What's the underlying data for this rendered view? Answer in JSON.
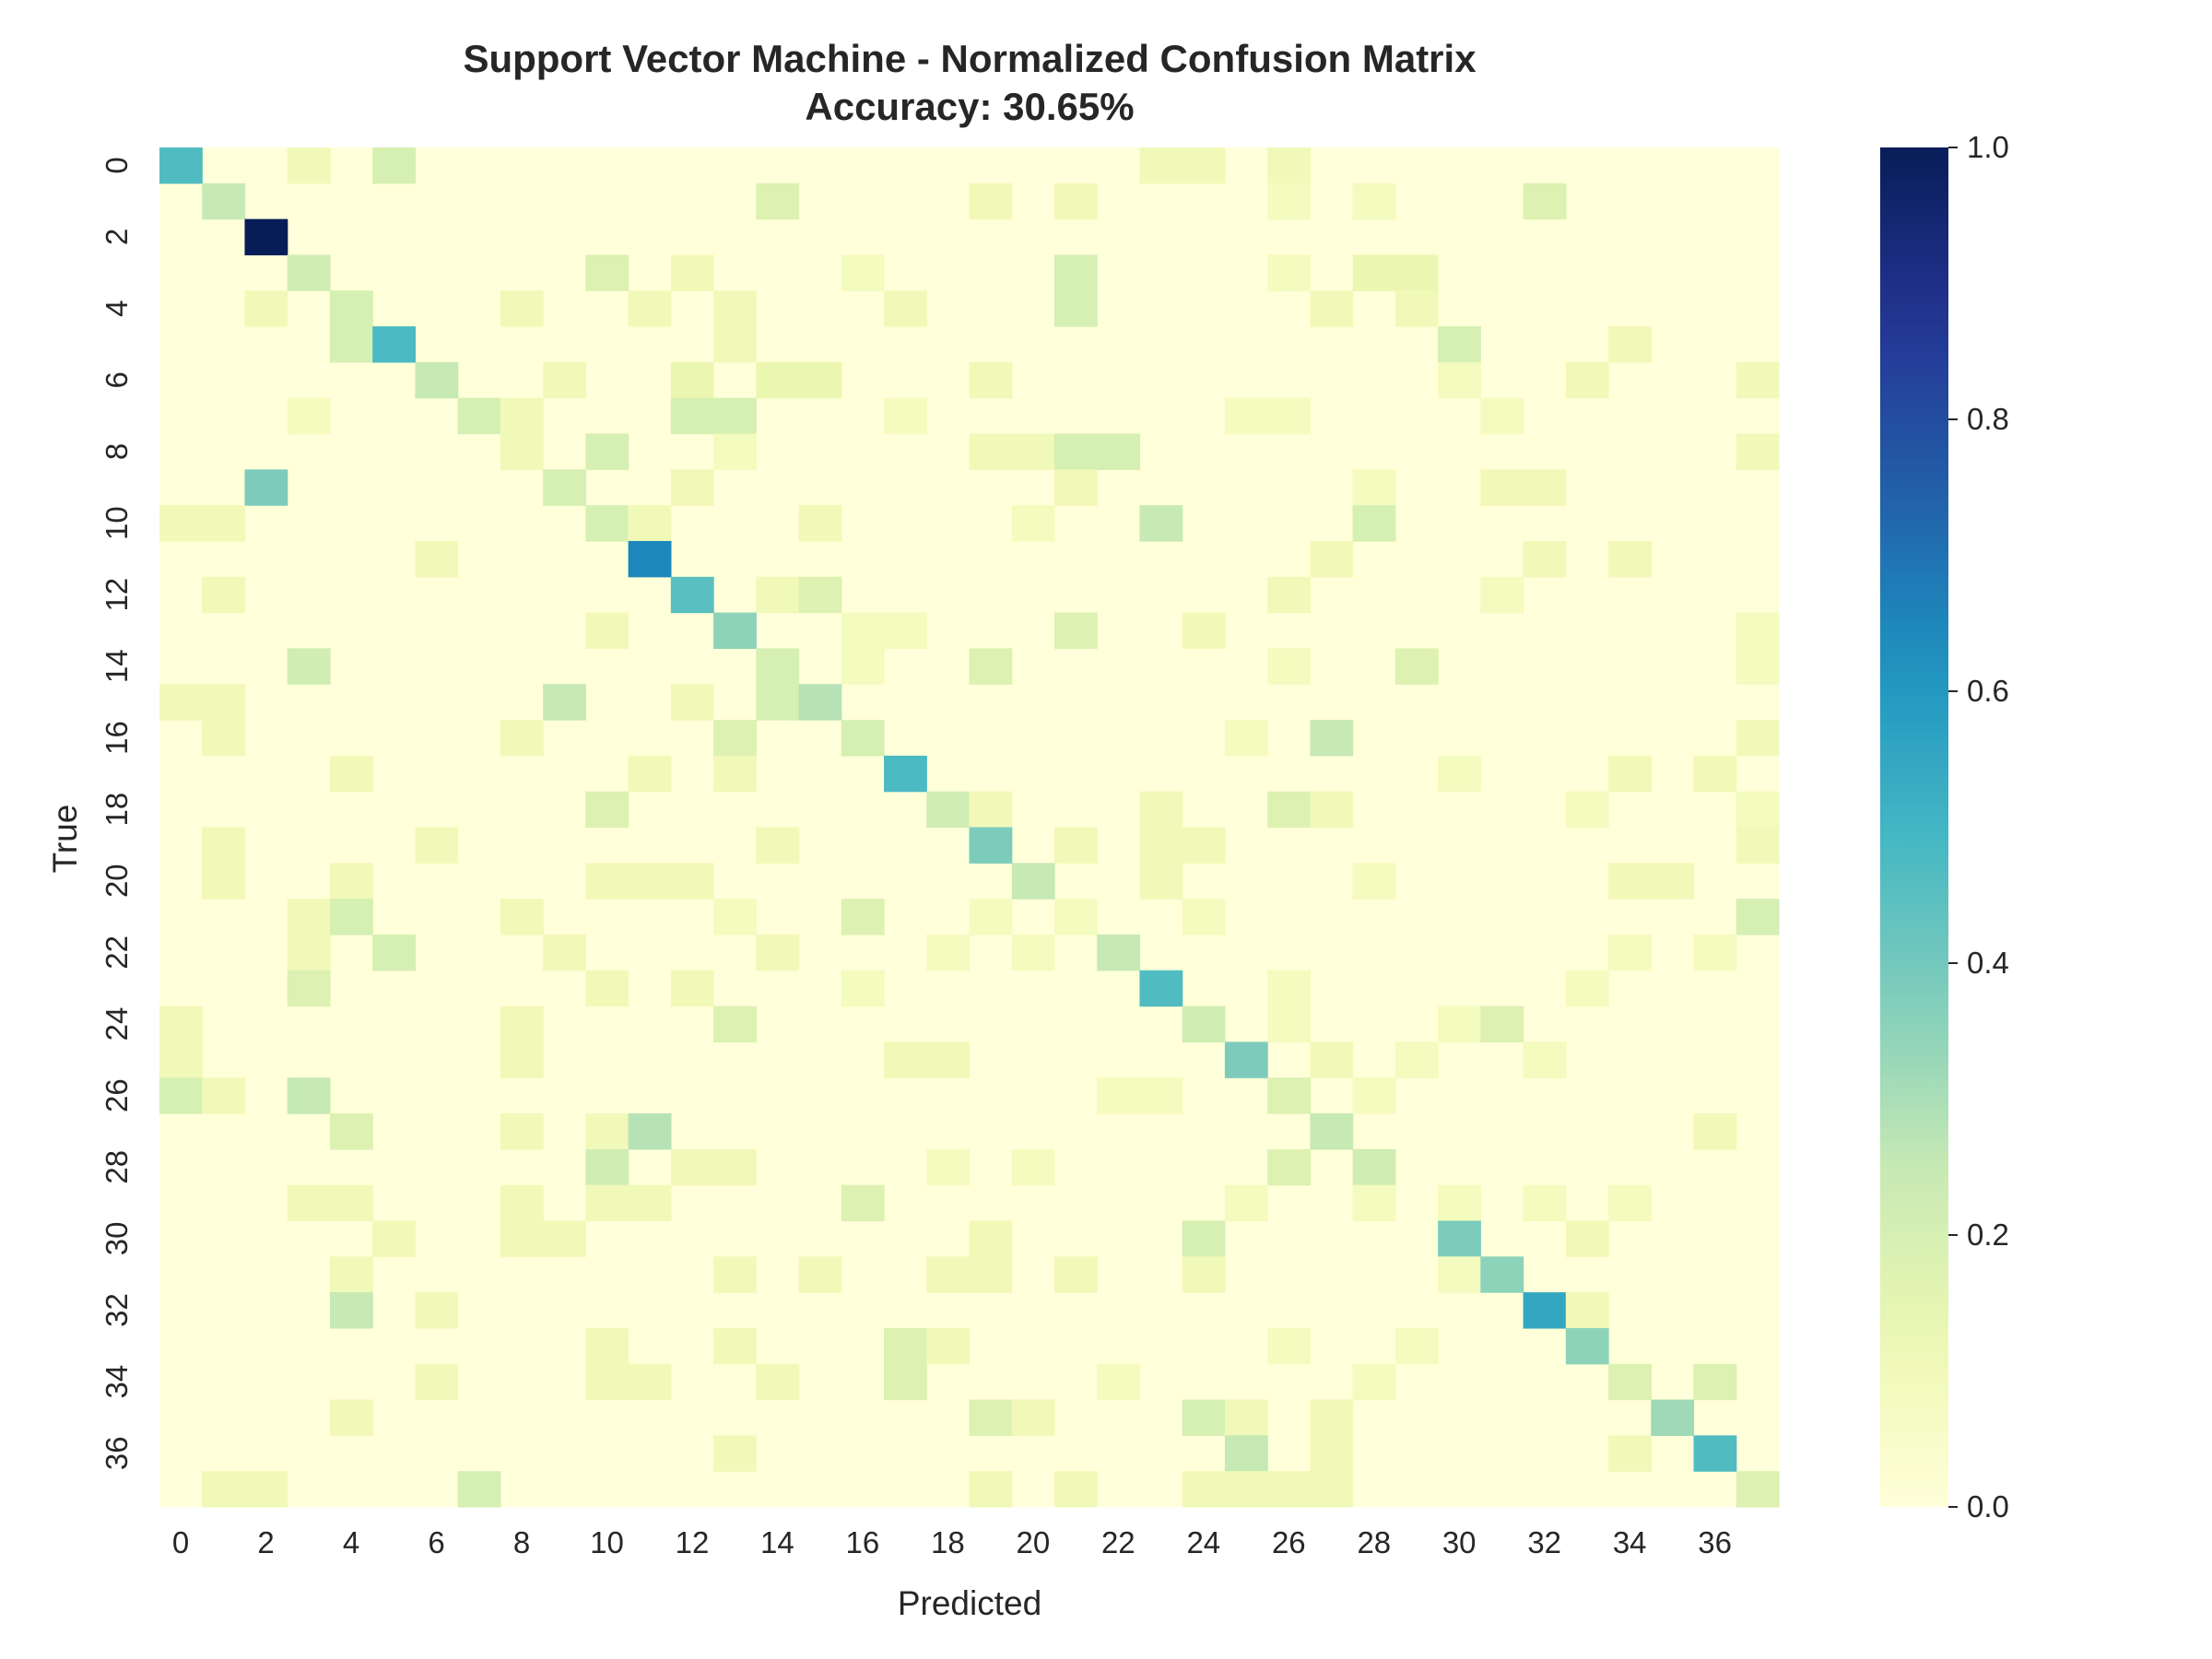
{
  "chart_data": {
    "type": "heatmap",
    "title": "Support Vector Machine - Normalized Confusion Matrix",
    "subtitle": "Accuracy: 30.65%",
    "xlabel": "Predicted",
    "ylabel": "True",
    "n_classes": 38,
    "x_tick_labels": [
      "0",
      "2",
      "4",
      "6",
      "8",
      "10",
      "12",
      "14",
      "16",
      "18",
      "20",
      "22",
      "24",
      "26",
      "28",
      "30",
      "32",
      "34",
      "36"
    ],
    "y_tick_labels": [
      "0",
      "2",
      "4",
      "6",
      "8",
      "10",
      "12",
      "14",
      "16",
      "18",
      "20",
      "22",
      "24",
      "26",
      "28",
      "30",
      "32",
      "34",
      "36"
    ],
    "colorbar": {
      "colormap": "YlGnBu",
      "range": [
        0.0,
        1.0
      ],
      "tick_labels": [
        "0.0",
        "0.2",
        "0.4",
        "0.6",
        "0.8",
        "1.0"
      ]
    },
    "cells": [
      [
        0,
        0,
        0.47
      ],
      [
        0,
        3,
        0.1
      ],
      [
        0,
        5,
        0.2
      ],
      [
        0,
        23,
        0.1
      ],
      [
        0,
        24,
        0.1
      ],
      [
        0,
        26,
        0.1
      ],
      [
        1,
        1,
        0.25
      ],
      [
        1,
        14,
        0.18
      ],
      [
        1,
        19,
        0.1
      ],
      [
        1,
        21,
        0.1
      ],
      [
        1,
        26,
        0.08
      ],
      [
        1,
        28,
        0.08
      ],
      [
        1,
        32,
        0.18
      ],
      [
        2,
        2,
        1.0
      ],
      [
        3,
        3,
        0.22
      ],
      [
        3,
        10,
        0.18
      ],
      [
        3,
        12,
        0.1
      ],
      [
        3,
        16,
        0.08
      ],
      [
        3,
        21,
        0.2
      ],
      [
        3,
        26,
        0.08
      ],
      [
        3,
        28,
        0.13
      ],
      [
        3,
        29,
        0.13
      ],
      [
        4,
        2,
        0.1
      ],
      [
        4,
        4,
        0.2
      ],
      [
        4,
        8,
        0.1
      ],
      [
        4,
        11,
        0.1
      ],
      [
        4,
        13,
        0.1
      ],
      [
        4,
        17,
        0.1
      ],
      [
        4,
        21,
        0.2
      ],
      [
        4,
        27,
        0.1
      ],
      [
        4,
        29,
        0.1
      ],
      [
        5,
        4,
        0.2
      ],
      [
        5,
        5,
        0.48
      ],
      [
        5,
        13,
        0.1
      ],
      [
        5,
        30,
        0.2
      ],
      [
        5,
        34,
        0.1
      ],
      [
        6,
        6,
        0.25
      ],
      [
        6,
        9,
        0.1
      ],
      [
        6,
        12,
        0.13
      ],
      [
        6,
        14,
        0.13
      ],
      [
        6,
        15,
        0.13
      ],
      [
        6,
        19,
        0.1
      ],
      [
        6,
        30,
        0.08
      ],
      [
        6,
        33,
        0.1
      ],
      [
        6,
        37,
        0.1
      ],
      [
        7,
        3,
        0.08
      ],
      [
        7,
        7,
        0.2
      ],
      [
        7,
        8,
        0.1
      ],
      [
        7,
        12,
        0.2
      ],
      [
        7,
        13,
        0.2
      ],
      [
        7,
        17,
        0.08
      ],
      [
        7,
        25,
        0.08
      ],
      [
        7,
        26,
        0.08
      ],
      [
        7,
        31,
        0.08
      ],
      [
        8,
        8,
        0.1
      ],
      [
        8,
        10,
        0.2
      ],
      [
        8,
        13,
        0.08
      ],
      [
        8,
        19,
        0.1
      ],
      [
        8,
        20,
        0.1
      ],
      [
        8,
        21,
        0.2
      ],
      [
        8,
        22,
        0.2
      ],
      [
        8,
        37,
        0.1
      ],
      [
        9,
        2,
        0.38
      ],
      [
        9,
        9,
        0.2
      ],
      [
        9,
        12,
        0.1
      ],
      [
        9,
        21,
        0.1
      ],
      [
        9,
        28,
        0.08
      ],
      [
        9,
        31,
        0.1
      ],
      [
        9,
        32,
        0.1
      ],
      [
        10,
        0,
        0.1
      ],
      [
        10,
        1,
        0.1
      ],
      [
        10,
        10,
        0.2
      ],
      [
        10,
        11,
        0.1
      ],
      [
        10,
        15,
        0.1
      ],
      [
        10,
        20,
        0.08
      ],
      [
        10,
        23,
        0.25
      ],
      [
        10,
        28,
        0.2
      ],
      [
        11,
        6,
        0.1
      ],
      [
        11,
        11,
        0.65
      ],
      [
        11,
        27,
        0.1
      ],
      [
        11,
        32,
        0.1
      ],
      [
        11,
        34,
        0.1
      ],
      [
        12,
        1,
        0.1
      ],
      [
        12,
        12,
        0.45
      ],
      [
        12,
        14,
        0.1
      ],
      [
        12,
        15,
        0.18
      ],
      [
        12,
        26,
        0.1
      ],
      [
        12,
        31,
        0.08
      ],
      [
        13,
        10,
        0.1
      ],
      [
        13,
        13,
        0.35
      ],
      [
        13,
        16,
        0.08
      ],
      [
        13,
        17,
        0.08
      ],
      [
        13,
        21,
        0.18
      ],
      [
        13,
        24,
        0.1
      ],
      [
        13,
        37,
        0.08
      ],
      [
        14,
        3,
        0.22
      ],
      [
        14,
        14,
        0.2
      ],
      [
        14,
        16,
        0.08
      ],
      [
        14,
        19,
        0.18
      ],
      [
        14,
        26,
        0.08
      ],
      [
        14,
        29,
        0.18
      ],
      [
        14,
        37,
        0.08
      ],
      [
        15,
        0,
        0.1
      ],
      [
        15,
        1,
        0.1
      ],
      [
        15,
        9,
        0.25
      ],
      [
        15,
        12,
        0.1
      ],
      [
        15,
        14,
        0.2
      ],
      [
        15,
        15,
        0.28
      ],
      [
        16,
        1,
        0.1
      ],
      [
        16,
        8,
        0.1
      ],
      [
        16,
        13,
        0.18
      ],
      [
        16,
        16,
        0.2
      ],
      [
        16,
        25,
        0.08
      ],
      [
        16,
        27,
        0.25
      ],
      [
        16,
        37,
        0.1
      ],
      [
        17,
        4,
        0.1
      ],
      [
        17,
        11,
        0.1
      ],
      [
        17,
        13,
        0.1
      ],
      [
        17,
        17,
        0.48
      ],
      [
        17,
        30,
        0.08
      ],
      [
        17,
        34,
        0.1
      ],
      [
        17,
        36,
        0.1
      ],
      [
        18,
        10,
        0.18
      ],
      [
        18,
        18,
        0.22
      ],
      [
        18,
        19,
        0.1
      ],
      [
        18,
        23,
        0.1
      ],
      [
        18,
        26,
        0.18
      ],
      [
        18,
        27,
        0.1
      ],
      [
        18,
        33,
        0.08
      ],
      [
        18,
        37,
        0.08
      ],
      [
        19,
        1,
        0.1
      ],
      [
        19,
        6,
        0.1
      ],
      [
        19,
        14,
        0.1
      ],
      [
        19,
        19,
        0.38
      ],
      [
        19,
        21,
        0.1
      ],
      [
        19,
        23,
        0.1
      ],
      [
        19,
        24,
        0.1
      ],
      [
        19,
        37,
        0.1
      ],
      [
        20,
        1,
        0.1
      ],
      [
        20,
        4,
        0.1
      ],
      [
        20,
        10,
        0.1
      ],
      [
        20,
        11,
        0.1
      ],
      [
        20,
        12,
        0.1
      ],
      [
        20,
        20,
        0.25
      ],
      [
        20,
        23,
        0.1
      ],
      [
        20,
        28,
        0.08
      ],
      [
        20,
        34,
        0.1
      ],
      [
        20,
        35,
        0.1
      ],
      [
        21,
        3,
        0.1
      ],
      [
        21,
        4,
        0.2
      ],
      [
        21,
        8,
        0.1
      ],
      [
        21,
        13,
        0.08
      ],
      [
        21,
        16,
        0.18
      ],
      [
        21,
        19,
        0.08
      ],
      [
        21,
        21,
        0.08
      ],
      [
        21,
        24,
        0.08
      ],
      [
        21,
        37,
        0.2
      ],
      [
        22,
        3,
        0.1
      ],
      [
        22,
        5,
        0.2
      ],
      [
        22,
        9,
        0.1
      ],
      [
        22,
        14,
        0.1
      ],
      [
        22,
        18,
        0.08
      ],
      [
        22,
        20,
        0.08
      ],
      [
        22,
        22,
        0.25
      ],
      [
        22,
        34,
        0.08
      ],
      [
        22,
        36,
        0.08
      ],
      [
        23,
        3,
        0.18
      ],
      [
        23,
        10,
        0.1
      ],
      [
        23,
        12,
        0.1
      ],
      [
        23,
        16,
        0.08
      ],
      [
        23,
        23,
        0.47
      ],
      [
        23,
        26,
        0.08
      ],
      [
        23,
        33,
        0.08
      ],
      [
        24,
        0,
        0.1
      ],
      [
        24,
        8,
        0.1
      ],
      [
        24,
        13,
        0.18
      ],
      [
        24,
        24,
        0.22
      ],
      [
        24,
        26,
        0.08
      ],
      [
        24,
        30,
        0.08
      ],
      [
        24,
        31,
        0.18
      ],
      [
        25,
        0,
        0.1
      ],
      [
        25,
        8,
        0.1
      ],
      [
        25,
        17,
        0.1
      ],
      [
        25,
        18,
        0.1
      ],
      [
        25,
        25,
        0.38
      ],
      [
        25,
        27,
        0.1
      ],
      [
        25,
        29,
        0.08
      ],
      [
        25,
        32,
        0.08
      ],
      [
        26,
        0,
        0.2
      ],
      [
        26,
        1,
        0.1
      ],
      [
        26,
        3,
        0.25
      ],
      [
        26,
        22,
        0.08
      ],
      [
        26,
        23,
        0.08
      ],
      [
        26,
        26,
        0.18
      ],
      [
        26,
        28,
        0.08
      ],
      [
        27,
        4,
        0.18
      ],
      [
        27,
        8,
        0.1
      ],
      [
        27,
        10,
        0.1
      ],
      [
        27,
        11,
        0.28
      ],
      [
        27,
        27,
        0.25
      ],
      [
        27,
        36,
        0.1
      ],
      [
        28,
        10,
        0.22
      ],
      [
        28,
        12,
        0.1
      ],
      [
        28,
        13,
        0.1
      ],
      [
        28,
        18,
        0.08
      ],
      [
        28,
        20,
        0.08
      ],
      [
        28,
        26,
        0.18
      ],
      [
        28,
        28,
        0.22
      ],
      [
        29,
        3,
        0.1
      ],
      [
        29,
        4,
        0.1
      ],
      [
        29,
        8,
        0.1
      ],
      [
        29,
        10,
        0.1
      ],
      [
        29,
        11,
        0.1
      ],
      [
        29,
        16,
        0.18
      ],
      [
        29,
        25,
        0.08
      ],
      [
        29,
        28,
        0.08
      ],
      [
        29,
        30,
        0.08
      ],
      [
        29,
        32,
        0.08
      ],
      [
        29,
        34,
        0.08
      ],
      [
        30,
        5,
        0.1
      ],
      [
        30,
        8,
        0.1
      ],
      [
        30,
        9,
        0.1
      ],
      [
        30,
        19,
        0.1
      ],
      [
        30,
        24,
        0.2
      ],
      [
        30,
        30,
        0.38
      ],
      [
        30,
        33,
        0.1
      ],
      [
        31,
        4,
        0.1
      ],
      [
        31,
        13,
        0.1
      ],
      [
        31,
        15,
        0.1
      ],
      [
        31,
        18,
        0.1
      ],
      [
        31,
        19,
        0.1
      ],
      [
        31,
        21,
        0.1
      ],
      [
        31,
        24,
        0.1
      ],
      [
        31,
        30,
        0.08
      ],
      [
        31,
        31,
        0.35
      ],
      [
        32,
        4,
        0.25
      ],
      [
        32,
        6,
        0.1
      ],
      [
        32,
        32,
        0.55
      ],
      [
        32,
        33,
        0.1
      ],
      [
        33,
        10,
        0.1
      ],
      [
        33,
        13,
        0.1
      ],
      [
        33,
        17,
        0.18
      ],
      [
        33,
        18,
        0.1
      ],
      [
        33,
        26,
        0.08
      ],
      [
        33,
        29,
        0.08
      ],
      [
        33,
        33,
        0.35
      ],
      [
        34,
        6,
        0.1
      ],
      [
        34,
        10,
        0.1
      ],
      [
        34,
        11,
        0.1
      ],
      [
        34,
        14,
        0.1
      ],
      [
        34,
        17,
        0.18
      ],
      [
        34,
        22,
        0.08
      ],
      [
        34,
        28,
        0.08
      ],
      [
        34,
        34,
        0.18
      ],
      [
        34,
        36,
        0.18
      ],
      [
        35,
        4,
        0.1
      ],
      [
        35,
        19,
        0.18
      ],
      [
        35,
        20,
        0.1
      ],
      [
        35,
        24,
        0.2
      ],
      [
        35,
        25,
        0.1
      ],
      [
        35,
        27,
        0.1
      ],
      [
        35,
        35,
        0.32
      ],
      [
        36,
        13,
        0.1
      ],
      [
        36,
        25,
        0.25
      ],
      [
        36,
        27,
        0.1
      ],
      [
        36,
        34,
        0.1
      ],
      [
        36,
        36,
        0.47
      ],
      [
        37,
        1,
        0.1
      ],
      [
        37,
        2,
        0.1
      ],
      [
        37,
        7,
        0.2
      ],
      [
        37,
        19,
        0.1
      ],
      [
        37,
        21,
        0.1
      ],
      [
        37,
        24,
        0.1
      ],
      [
        37,
        25,
        0.1
      ],
      [
        37,
        26,
        0.1
      ],
      [
        37,
        27,
        0.1
      ],
      [
        37,
        37,
        0.18
      ]
    ]
  }
}
